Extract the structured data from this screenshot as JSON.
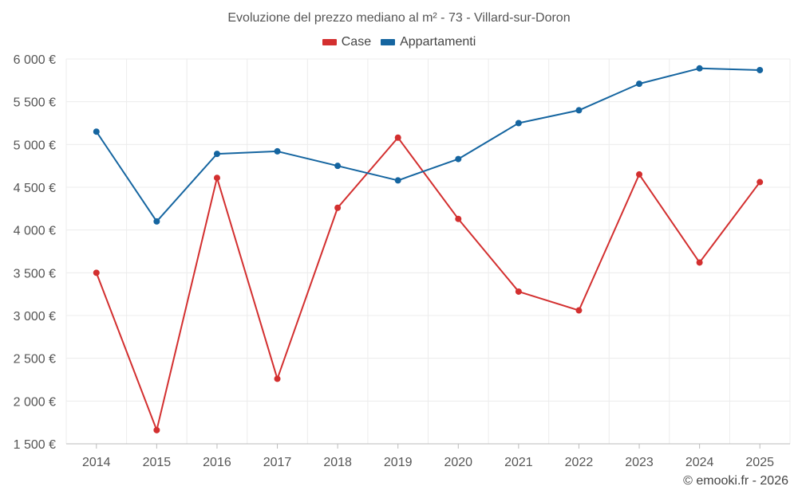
{
  "chart_data": {
    "type": "line",
    "title": "Evoluzione del prezzo mediano al m² - 73 - Villard-sur-Doron",
    "categories": [
      "2014",
      "2015",
      "2016",
      "2017",
      "2018",
      "2019",
      "2020",
      "2021",
      "2022",
      "2023",
      "2024",
      "2025"
    ],
    "series": [
      {
        "name": "Case",
        "color": "#d32f2f",
        "values": [
          3500,
          1660,
          4610,
          2260,
          4260,
          5080,
          4130,
          3280,
          3060,
          4650,
          3620,
          4560
        ]
      },
      {
        "name": "Appartamenti",
        "color": "#1565a0",
        "values": [
          5150,
          4100,
          4890,
          4920,
          4750,
          4580,
          4830,
          5250,
          5400,
          5710,
          5890,
          5870
        ]
      }
    ],
    "ylim": [
      1500,
      6000
    ],
    "yticks": [
      1500,
      2000,
      2500,
      3000,
      3500,
      4000,
      4500,
      5000,
      5500,
      6000
    ],
    "ytick_labels": [
      "1 500 €",
      "2 000 €",
      "2 500 €",
      "3 000 €",
      "3 500 €",
      "4 000 €",
      "4 500 €",
      "5 000 €",
      "5 500 €",
      "6 000 €"
    ],
    "xlabel": "",
    "ylabel": "",
    "grid": true,
    "legend_position": "top-center"
  },
  "credit": "© emooki.fr - 2026"
}
